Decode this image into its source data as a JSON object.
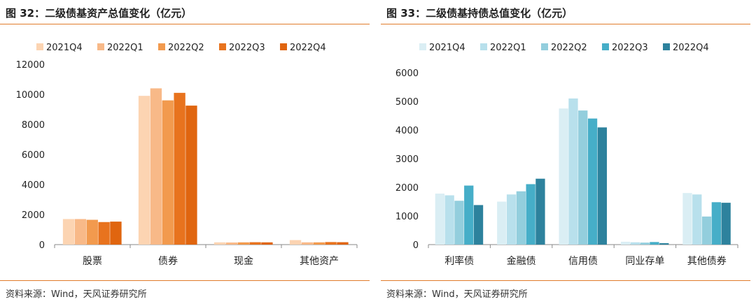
{
  "panels": [
    {
      "title": "图 32：二级债基资产总值变化（亿元）",
      "source": "资料来源：Wind，天风证券研究所",
      "colors": [
        "#fcd4b2",
        "#f8b988",
        "#f29a4e",
        "#e8731e",
        "#e0650f"
      ],
      "chart_data": {
        "type": "bar",
        "categories": [
          "股票",
          "债券",
          "现金",
          "其他资产"
        ],
        "series": [
          {
            "name": "2021Q4",
            "values": [
              1700,
              9900,
              150,
              300
            ]
          },
          {
            "name": "2022Q1",
            "values": [
              1700,
              10400,
              140,
              150
            ]
          },
          {
            "name": "2022Q2",
            "values": [
              1650,
              9600,
              150,
              150
            ]
          },
          {
            "name": "2022Q3",
            "values": [
              1500,
              10100,
              160,
              170
            ]
          },
          {
            "name": "2022Q4",
            "values": [
              1530,
              9250,
              150,
              160
            ]
          }
        ],
        "ylim": [
          0,
          12000
        ],
        "yticks": [
          0,
          2000,
          4000,
          6000,
          8000,
          10000,
          12000
        ],
        "legend_position": "top",
        "grid": false
      }
    },
    {
      "title": "图 33：二级债基持债总值变化（亿元）",
      "source": "资料来源：Wind，天风证券研究所",
      "colors": [
        "#daeef4",
        "#b8e0ec",
        "#93cedd",
        "#46aec8",
        "#2d829d"
      ],
      "chart_data": {
        "type": "bar",
        "categories": [
          "利率债",
          "金融债",
          "信用债",
          "同业存单",
          "其他债券"
        ],
        "series": [
          {
            "name": "2021Q4",
            "values": [
              1780,
              1500,
              4750,
              100,
              1800
            ]
          },
          {
            "name": "2022Q1",
            "values": [
              1720,
              1750,
              5100,
              80,
              1750
            ]
          },
          {
            "name": "2022Q2",
            "values": [
              1530,
              1860,
              4680,
              70,
              980
            ]
          },
          {
            "name": "2022Q3",
            "values": [
              2060,
              2110,
              4400,
              90,
              1480
            ]
          },
          {
            "name": "2022Q4",
            "values": [
              1380,
              2300,
              4090,
              50,
              1460
            ]
          }
        ],
        "ylim": [
          0,
          6000
        ],
        "yticks": [
          0,
          1000,
          2000,
          3000,
          4000,
          5000,
          6000
        ],
        "legend_position": "top",
        "grid": false
      }
    }
  ]
}
